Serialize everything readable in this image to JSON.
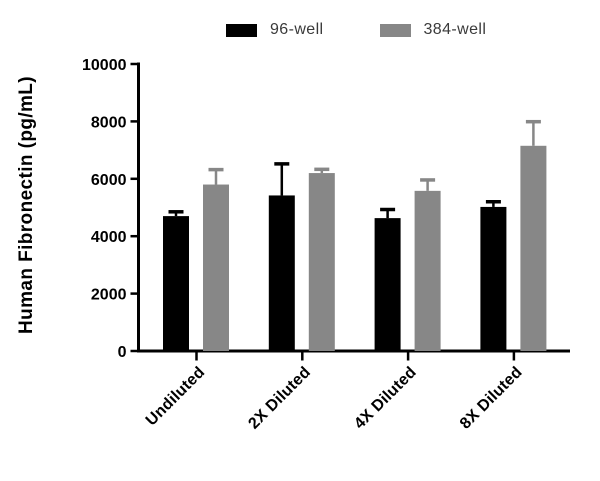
{
  "chart_data": {
    "type": "bar",
    "title": "",
    "categories": [
      "Undiluted",
      "2X Diluted",
      "4X Diluted",
      "8X Diluted"
    ],
    "series": [
      {
        "name": "96-well",
        "color": "#000000",
        "values": [
          4700,
          5420,
          4630,
          5020
        ],
        "errors": [
          150,
          1100,
          300,
          180
        ]
      },
      {
        "name": "384-well",
        "color": "#878787",
        "values": [
          5800,
          6200,
          5580,
          7150
        ],
        "errors": [
          520,
          130,
          380,
          840
        ]
      }
    ],
    "xlabel": "",
    "ylabel": "Human Fibronectin (pg/mL)",
    "ylim": [
      0,
      10000
    ],
    "yticks": [
      0,
      2000,
      4000,
      6000,
      8000,
      10000
    ],
    "grid": false,
    "legend_position": "top",
    "error_bars": "upper-only SD with caps",
    "axis_color": "#000000"
  }
}
